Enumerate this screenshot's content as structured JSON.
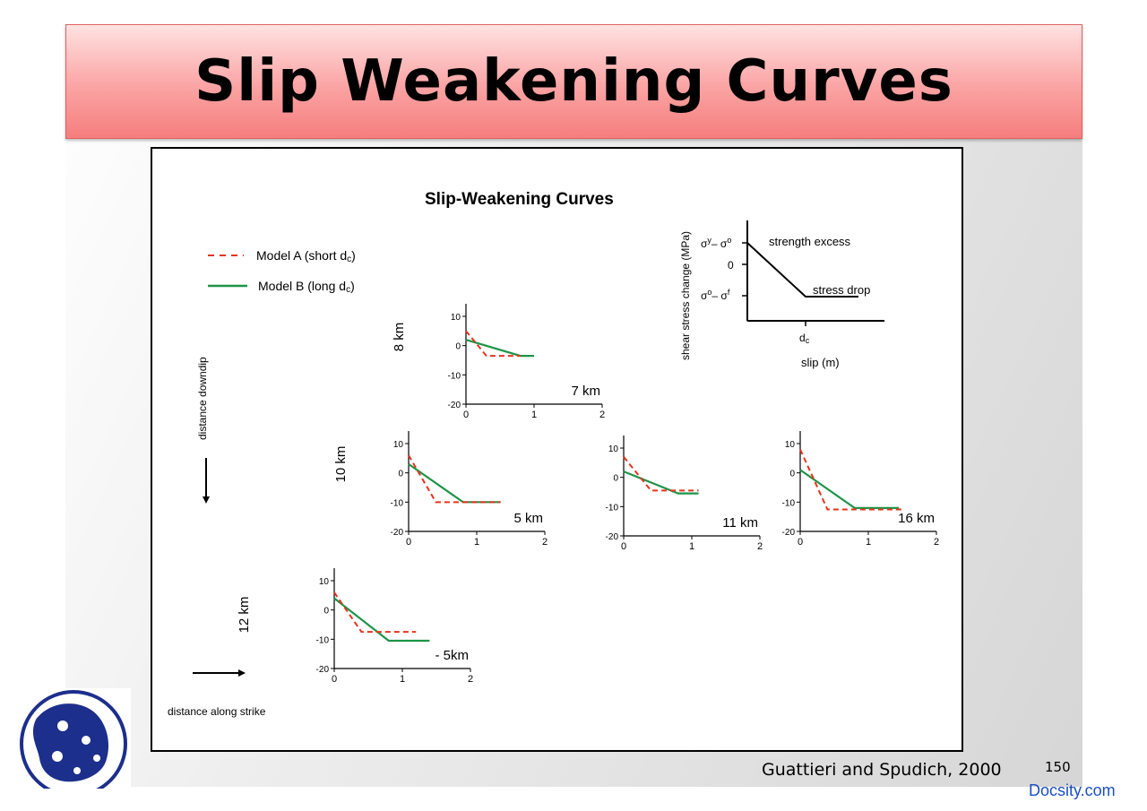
{
  "slide": {
    "title": "Slip Weakening Curves",
    "credit": "Guattieri and Spudich, 2000",
    "page_number": "150",
    "brand": "Docsity.com",
    "colors": {
      "title_bar": "#f89a9a",
      "model_a": "#e8321e",
      "model_b": "#1e9448",
      "brand": "#1a4fc4"
    }
  },
  "figure": {
    "title": "Slip-Weakening Curves",
    "legend": [
      {
        "label": "Model A (short d",
        "sub": "c",
        "close": ")",
        "style": "dashed",
        "color": "#e8321e"
      },
      {
        "label": "Model B (long d",
        "sub": "c",
        "close": ")",
        "style": "solid",
        "color": "#1e9448"
      }
    ],
    "arrows": {
      "downdip": "distance downdip",
      "strike": "distance along strike"
    },
    "schematic": {
      "ylabel": "shear stress change (MPa)",
      "xlabel": "slip (m)",
      "xtick": "d",
      "xtick_sub": "c",
      "yticks": [
        "σ",
        "0",
        "σ"
      ],
      "ytick_top": {
        "a": "σ",
        "a_sup": "y",
        "b": "– σ",
        "b_sup": "o"
      },
      "ytick_zero": "0",
      "ytick_bottom": {
        "a": "σ",
        "a_sup": "o",
        "b": "– σ",
        "b_sup": "f"
      },
      "annotations": [
        "strength excess",
        "stress drop"
      ]
    }
  },
  "chart_data": [
    {
      "type": "line",
      "depth_label": "8 km",
      "strike_label": "7 km",
      "xlim": [
        0,
        2
      ],
      "ylim": [
        -20,
        10
      ],
      "xticks": [
        "0",
        "1",
        "2"
      ],
      "yticks": [
        "10",
        "0",
        "-10",
        "-20"
      ],
      "series": [
        {
          "name": "Model A (short dc)",
          "x": [
            0,
            0.3,
            0.8
          ],
          "y": [
            5,
            -3.5,
            -3.5
          ]
        },
        {
          "name": "Model B (long dc)",
          "x": [
            0,
            0.8,
            1.0
          ],
          "y": [
            2,
            -3.5,
            -3.5
          ]
        }
      ]
    },
    {
      "type": "line",
      "depth_label": "10 km",
      "strike_label": "5 km",
      "xlim": [
        0,
        2
      ],
      "ylim": [
        -20,
        10
      ],
      "xticks": [
        "0",
        "1",
        "2"
      ],
      "yticks": [
        "10",
        "0",
        "-10",
        "-20"
      ],
      "series": [
        {
          "name": "Model A (short dc)",
          "x": [
            0,
            0.4,
            1.35
          ],
          "y": [
            6,
            -10,
            -10
          ]
        },
        {
          "name": "Model B (long dc)",
          "x": [
            0,
            0.8,
            1.35
          ],
          "y": [
            3,
            -10,
            -10
          ]
        }
      ]
    },
    {
      "type": "line",
      "depth_label": "",
      "strike_label": "11 km",
      "xlim": [
        0,
        2
      ],
      "ylim": [
        -20,
        10
      ],
      "xticks": [
        "0",
        "1",
        "2"
      ],
      "yticks": [
        "10",
        "0",
        "-10",
        "-20"
      ],
      "series": [
        {
          "name": "Model A (short dc)",
          "x": [
            0,
            0.4,
            1.1
          ],
          "y": [
            7,
            -4.5,
            -4.5
          ]
        },
        {
          "name": "Model B (long dc)",
          "x": [
            0,
            0.8,
            1.1
          ],
          "y": [
            2,
            -5.5,
            -5.5
          ]
        }
      ]
    },
    {
      "type": "line",
      "depth_label": "",
      "strike_label": "16 km",
      "xlim": [
        0,
        2
      ],
      "ylim": [
        -20,
        10
      ],
      "xticks": [
        "0",
        "1",
        "2"
      ],
      "yticks": [
        "10",
        "0",
        "-10",
        "-20"
      ],
      "series": [
        {
          "name": "Model A (short dc)",
          "x": [
            0,
            0.4,
            1.5
          ],
          "y": [
            8,
            -12.5,
            -12.5
          ]
        },
        {
          "name": "Model B (long dc)",
          "x": [
            0,
            0.8,
            1.45
          ],
          "y": [
            1,
            -12,
            -12
          ]
        }
      ]
    },
    {
      "type": "line",
      "depth_label": "12 km",
      "strike_label": "- 5km",
      "xlim": [
        0,
        2
      ],
      "ylim": [
        -20,
        10
      ],
      "xticks": [
        "0",
        "1",
        "2"
      ],
      "yticks": [
        "10",
        "0",
        "-10",
        "-20"
      ],
      "series": [
        {
          "name": "Model A (short dc)",
          "x": [
            0,
            0.4,
            1.2
          ],
          "y": [
            6,
            -7.5,
            -7.5
          ]
        },
        {
          "name": "Model B (long dc)",
          "x": [
            0,
            0.8,
            1.4
          ],
          "y": [
            4,
            -10.5,
            -10.5
          ]
        }
      ]
    }
  ]
}
